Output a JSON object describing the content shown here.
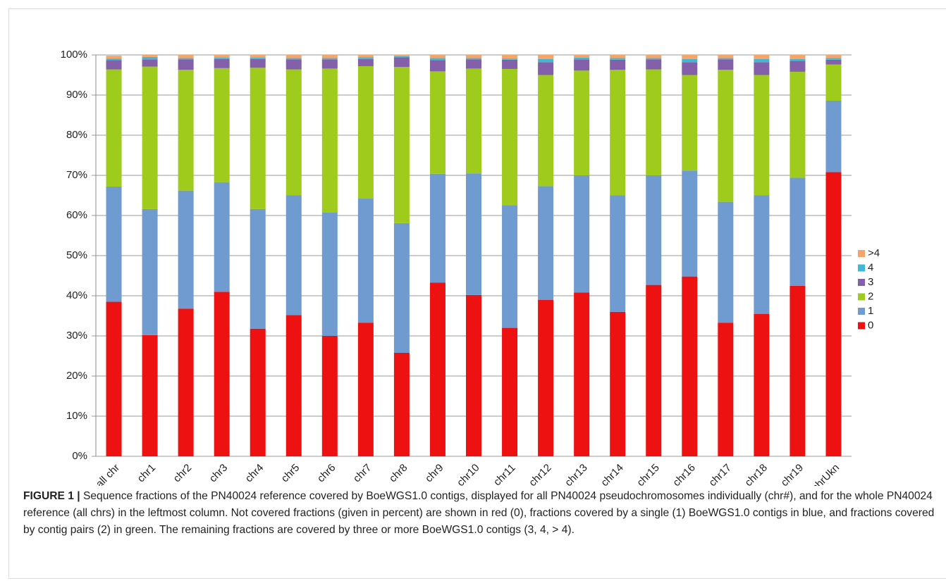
{
  "chart_data": {
    "type": "stacked_bar",
    "categories": [
      "all chr",
      "chr1",
      "chr2",
      "chr3",
      "chr4",
      "chr5",
      "chr6",
      "chr7",
      "chr8",
      "chr9",
      "chr10",
      "chr11",
      "chr12",
      "chr13",
      "chr14",
      "chr15",
      "chr16",
      "chr17",
      "chr18",
      "chr19",
      "chrUkn"
    ],
    "series": [
      {
        "name": "0",
        "color": "#ee1111",
        "values": [
          38.5,
          30.2,
          36.8,
          41,
          31.8,
          35.2,
          30,
          33.3,
          25.8,
          43.3,
          40.2,
          32,
          39,
          40.8,
          36,
          42.7,
          44.8,
          33.3,
          35.5,
          42.5,
          70.8
        ]
      },
      {
        "name": "1",
        "color": "#6f9bd1",
        "values": [
          28.7,
          31.4,
          29.4,
          27.3,
          29.8,
          29.8,
          30.7,
          30.9,
          32.3,
          27.1,
          30.3,
          30.6,
          28.3,
          29.2,
          29,
          27.3,
          26.4,
          30.1,
          29.5,
          26.9,
          17.8
        ]
      },
      {
        "name": "2",
        "color": "#9ecb1c",
        "values": [
          29.2,
          35.5,
          30.1,
          28.4,
          35.2,
          31.4,
          35.9,
          33,
          38.9,
          25.5,
          26.1,
          33.9,
          27.7,
          26.1,
          31.3,
          26.4,
          23.8,
          32.9,
          30,
          26.4,
          9
        ]
      },
      {
        "name": "3",
        "color": "#8560aa",
        "values": [
          2.3,
          1.8,
          2.6,
          2.3,
          2.2,
          2.5,
          2.3,
          1.8,
          2.4,
          2.8,
          2.3,
          2.3,
          3.2,
          2.8,
          2.5,
          2.5,
          3.2,
          2.6,
          3.2,
          2.7,
          1.2
        ]
      },
      {
        "name": "4",
        "color": "#3fb8d8",
        "values": [
          0.4,
          0.6,
          0.3,
          0.3,
          0.3,
          0.3,
          0.3,
          0.4,
          0.3,
          0.5,
          0.3,
          0.3,
          0.8,
          0.4,
          0.4,
          0.3,
          0.8,
          0.3,
          0.8,
          0.5,
          0.4
        ]
      },
      {
        "name": ">4",
        "color": "#f5a46a",
        "values": [
          0.7,
          0.5,
          0.8,
          0.7,
          0.7,
          0.8,
          0.8,
          0.6,
          0.3,
          0.8,
          0.8,
          0.9,
          1,
          0.7,
          0.8,
          0.8,
          1,
          0.8,
          1,
          1,
          0.8
        ]
      }
    ],
    "ylim": [
      0,
      100
    ],
    "yticks": [
      {
        "value": 0,
        "label": "0%"
      },
      {
        "value": 10,
        "label": "10%"
      },
      {
        "value": 20,
        "label": "20%"
      },
      {
        "value": 30,
        "label": "30%"
      },
      {
        "value": 40,
        "label": "40%"
      },
      {
        "value": 50,
        "label": "50%"
      },
      {
        "value": 60,
        "label": "60%"
      },
      {
        "value": 70,
        "label": "70%"
      },
      {
        "value": 80,
        "label": "80%"
      },
      {
        "value": 90,
        "label": "90%"
      },
      {
        "value": 100,
        "label": "100%"
      }
    ],
    "grid": true,
    "legend": "right"
  },
  "caption": {
    "label": "FIGURE 1 |",
    "text": "Sequence fractions of the PN40024 reference covered by BoeWGS1.0 contigs, displayed for all PN40024 pseudochromosomes individually (chr#), and for the whole PN40024 reference (all chrs) in the leftmost column. Not covered fractions (given in percent) are shown in red (0), fractions covered by a single (1) BoeWGS1.0 contigs in blue, and fractions covered by contig pairs (2) in green. The remaining fractions are covered by three or more BoeWGS1.0 contigs (3, 4, > 4)."
  }
}
